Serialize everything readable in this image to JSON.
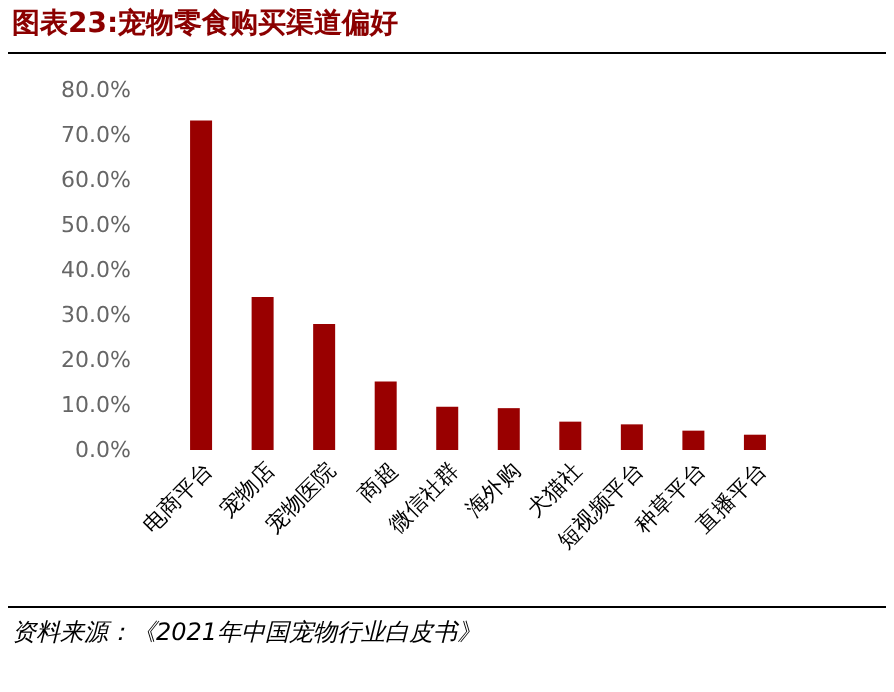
{
  "chart_data": {
    "type": "bar",
    "title": "图表23:宠物零食购买渠道偏好",
    "categories": [
      "电商平台",
      "宠物店",
      "宠物医院",
      "商超",
      "微信社群",
      "海外购",
      "犬猫社",
      "短视频平台",
      "种草平台",
      "直播平台"
    ],
    "values": [
      73.2,
      34.0,
      28.0,
      15.2,
      9.6,
      9.3,
      6.3,
      5.7,
      4.3,
      3.4
    ],
    "color": "#990000",
    "ylim": [
      0,
      80
    ],
    "yticks": [
      {
        "value": 0,
        "label": "0.0%"
      },
      {
        "value": 10,
        "label": "10.0%"
      },
      {
        "value": 20,
        "label": "20.0%"
      },
      {
        "value": 30,
        "label": "30.0%"
      },
      {
        "value": 40,
        "label": "40.0%"
      },
      {
        "value": 50,
        "label": "50.0%"
      },
      {
        "value": 60,
        "label": "60.0%"
      },
      {
        "value": 70,
        "label": "70.0%"
      },
      {
        "value": 80,
        "label": "80.0%"
      }
    ],
    "grid": false,
    "annotations": [
      "资料来源：《2021年中国宠物行业白皮书》"
    ]
  }
}
